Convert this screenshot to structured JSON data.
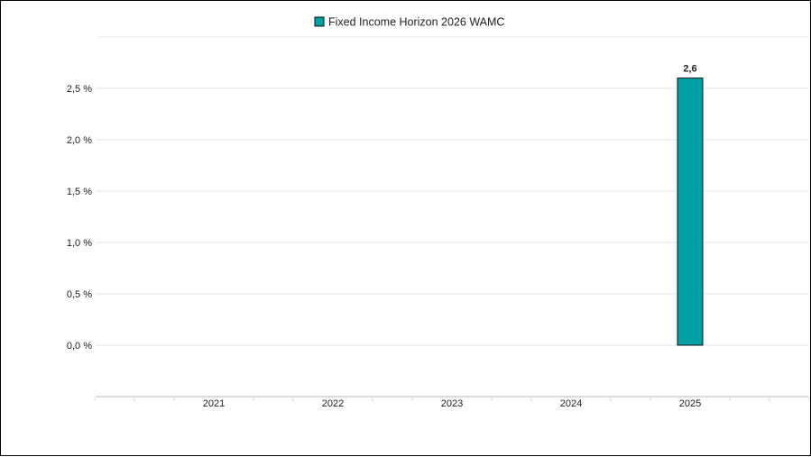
{
  "chart_data": {
    "type": "bar",
    "categories": [
      "2021",
      "2022",
      "2023",
      "2024",
      "2025"
    ],
    "series": [
      {
        "name": "Fixed Income Horizon 2026 WAMC",
        "color": "#00A0A6",
        "values": [
          null,
          null,
          null,
          null,
          2.6
        ],
        "data_labels": [
          "",
          "",
          "",
          "",
          "2,6"
        ]
      }
    ],
    "y_ticks": [
      {
        "value": 0.0,
        "label": "0,0 %"
      },
      {
        "value": 0.5,
        "label": "0,5 %"
      },
      {
        "value": 1.0,
        "label": "1,0 %"
      },
      {
        "value": 1.5,
        "label": "1,5 %"
      },
      {
        "value": 2.0,
        "label": "2,0 %"
      },
      {
        "value": 2.5,
        "label": "2,5 %"
      }
    ],
    "ylim": [
      0,
      2.5
    ],
    "legend_position": "top-center",
    "grid": true,
    "title": "",
    "xlabel": "",
    "ylabel": ""
  }
}
